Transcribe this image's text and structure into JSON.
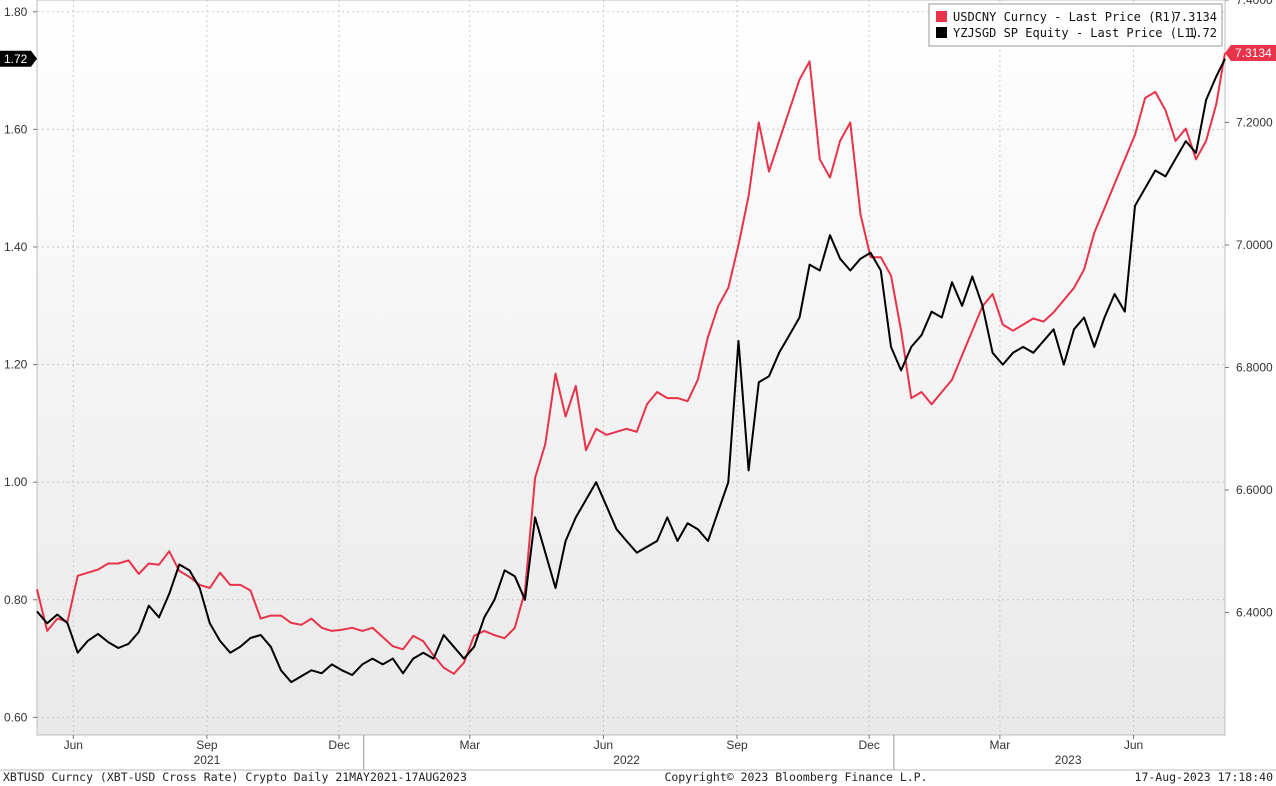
{
  "chart_data": {
    "type": "line",
    "x_range": [
      "2021-05-21",
      "2023-08-17"
    ],
    "left_axis": {
      "ylim": [
        0.57,
        1.82
      ],
      "ticks": [
        0.6,
        0.8,
        1.0,
        1.2,
        1.4,
        1.6,
        1.8
      ],
      "tick_labels": [
        "0.60",
        "0.80",
        "1.00",
        "1.20",
        "1.40",
        "1.60",
        "1.80"
      ]
    },
    "right_axis": {
      "ylim": [
        6.2,
        7.4
      ],
      "ticks": [
        6.4,
        6.6,
        6.8,
        7.0,
        7.2,
        7.4
      ],
      "tick_labels": [
        "6.4000",
        "6.6000",
        "6.8000",
        "7.0000",
        "7.2000",
        "7.4000"
      ]
    },
    "x_months": [
      {
        "label": "Jun",
        "date": "2021-06-15"
      },
      {
        "label": "Sep",
        "date": "2021-09-15"
      },
      {
        "label": "Dec",
        "date": "2021-12-15"
      },
      {
        "label": "Mar",
        "date": "2022-03-15"
      },
      {
        "label": "Jun",
        "date": "2022-06-15"
      },
      {
        "label": "Sep",
        "date": "2022-09-15"
      },
      {
        "label": "Dec",
        "date": "2022-12-15"
      },
      {
        "label": "Mar",
        "date": "2023-03-15"
      },
      {
        "label": "Jun",
        "date": "2023-06-15"
      }
    ],
    "x_years": [
      {
        "label": "2021",
        "date": "2021-09-15"
      },
      {
        "label": "2022",
        "date": "2022-07-01"
      },
      {
        "label": "2023",
        "date": "2023-05-01"
      }
    ],
    "year_dividers": [
      "2022-01-01",
      "2023-01-01"
    ],
    "grid": true,
    "legend_position": "top-right",
    "series": [
      {
        "name": "USDCNY Curncy - Last Price (R1)",
        "last_label": "7.3134",
        "axis": "right",
        "color": "#e8334a",
        "points": [
          [
            "2021-05-21",
            6.438
          ],
          [
            "2021-05-28",
            6.37
          ],
          [
            "2021-06-04",
            6.39
          ],
          [
            "2021-06-11",
            6.385
          ],
          [
            "2021-06-18",
            6.46
          ],
          [
            "2021-06-25",
            6.465
          ],
          [
            "2021-07-02",
            6.47
          ],
          [
            "2021-07-09",
            6.48
          ],
          [
            "2021-07-16",
            6.48
          ],
          [
            "2021-07-23",
            6.485
          ],
          [
            "2021-07-30",
            6.463
          ],
          [
            "2021-08-06",
            6.48
          ],
          [
            "2021-08-13",
            6.478
          ],
          [
            "2021-08-20",
            6.5
          ],
          [
            "2021-08-27",
            6.468
          ],
          [
            "2021-09-03",
            6.458
          ],
          [
            "2021-09-10",
            6.445
          ],
          [
            "2021-09-17",
            6.44
          ],
          [
            "2021-09-24",
            6.465
          ],
          [
            "2021-10-01",
            6.445
          ],
          [
            "2021-10-08",
            6.445
          ],
          [
            "2021-10-15",
            6.436
          ],
          [
            "2021-10-22",
            6.39
          ],
          [
            "2021-10-29",
            6.395
          ],
          [
            "2021-11-05",
            6.395
          ],
          [
            "2021-11-12",
            6.383
          ],
          [
            "2021-11-19",
            6.38
          ],
          [
            "2021-11-26",
            6.39
          ],
          [
            "2021-12-03",
            6.375
          ],
          [
            "2021-12-10",
            6.37
          ],
          [
            "2021-12-17",
            6.372
          ],
          [
            "2021-12-24",
            6.375
          ],
          [
            "2021-12-31",
            6.37
          ],
          [
            "2022-01-07",
            6.375
          ],
          [
            "2022-01-14",
            6.36
          ],
          [
            "2022-01-21",
            6.345
          ],
          [
            "2022-01-28",
            6.34
          ],
          [
            "2022-02-04",
            6.362
          ],
          [
            "2022-02-11",
            6.353
          ],
          [
            "2022-02-18",
            6.33
          ],
          [
            "2022-02-25",
            6.31
          ],
          [
            "2022-03-04",
            6.3
          ],
          [
            "2022-03-11",
            6.318
          ],
          [
            "2022-03-18",
            6.362
          ],
          [
            "2022-03-25",
            6.37
          ],
          [
            "2022-04-01",
            6.363
          ],
          [
            "2022-04-08",
            6.358
          ],
          [
            "2022-04-15",
            6.375
          ],
          [
            "2022-04-22",
            6.435
          ],
          [
            "2022-04-29",
            6.62
          ],
          [
            "2022-05-06",
            6.675
          ],
          [
            "2022-05-13",
            6.79
          ],
          [
            "2022-05-20",
            6.72
          ],
          [
            "2022-05-27",
            6.77
          ],
          [
            "2022-06-03",
            6.665
          ],
          [
            "2022-06-10",
            6.7
          ],
          [
            "2022-06-17",
            6.69
          ],
          [
            "2022-06-24",
            6.695
          ],
          [
            "2022-07-01",
            6.7
          ],
          [
            "2022-07-08",
            6.695
          ],
          [
            "2022-07-15",
            6.74
          ],
          [
            "2022-07-22",
            6.76
          ],
          [
            "2022-07-29",
            6.75
          ],
          [
            "2022-08-05",
            6.75
          ],
          [
            "2022-08-12",
            6.745
          ],
          [
            "2022-08-19",
            6.78
          ],
          [
            "2022-08-26",
            6.85
          ],
          [
            "2022-09-02",
            6.9
          ],
          [
            "2022-09-09",
            6.93
          ],
          [
            "2022-09-16",
            7.0
          ],
          [
            "2022-09-23",
            7.08
          ],
          [
            "2022-09-30",
            7.2
          ],
          [
            "2022-10-07",
            7.12
          ],
          [
            "2022-10-14",
            7.17
          ],
          [
            "2022-10-21",
            7.22
          ],
          [
            "2022-10-28",
            7.27
          ],
          [
            "2022-11-04",
            7.3
          ],
          [
            "2022-11-11",
            7.14
          ],
          [
            "2022-11-18",
            7.11
          ],
          [
            "2022-11-25",
            7.17
          ],
          [
            "2022-12-02",
            7.2
          ],
          [
            "2022-12-09",
            7.05
          ],
          [
            "2022-12-16",
            6.98
          ],
          [
            "2022-12-23",
            6.98
          ],
          [
            "2022-12-30",
            6.95
          ],
          [
            "2023-01-06",
            6.86
          ],
          [
            "2023-01-13",
            6.75
          ],
          [
            "2023-01-20",
            6.76
          ],
          [
            "2023-01-27",
            6.74
          ],
          [
            "2023-02-03",
            6.76
          ],
          [
            "2023-02-10",
            6.78
          ],
          [
            "2023-02-17",
            6.82
          ],
          [
            "2023-02-24",
            6.86
          ],
          [
            "2023-03-03",
            6.9
          ],
          [
            "2023-03-10",
            6.92
          ],
          [
            "2023-03-17",
            6.87
          ],
          [
            "2023-03-24",
            6.86
          ],
          [
            "2023-03-31",
            6.87
          ],
          [
            "2023-04-07",
            6.88
          ],
          [
            "2023-04-14",
            6.875
          ],
          [
            "2023-04-21",
            6.89
          ],
          [
            "2023-04-28",
            6.91
          ],
          [
            "2023-05-05",
            6.93
          ],
          [
            "2023-05-12",
            6.96
          ],
          [
            "2023-05-19",
            7.02
          ],
          [
            "2023-05-26",
            7.06
          ],
          [
            "2023-06-02",
            7.1
          ],
          [
            "2023-06-09",
            7.14
          ],
          [
            "2023-06-16",
            7.18
          ],
          [
            "2023-06-23",
            7.24
          ],
          [
            "2023-06-30",
            7.25
          ],
          [
            "2023-07-07",
            7.22
          ],
          [
            "2023-07-14",
            7.17
          ],
          [
            "2023-07-21",
            7.19
          ],
          [
            "2023-07-28",
            7.14
          ],
          [
            "2023-08-04",
            7.17
          ],
          [
            "2023-08-11",
            7.23
          ],
          [
            "2023-08-17",
            7.3134
          ]
        ]
      },
      {
        "name": "YZJSGD SP Equity - Last Price (L1)",
        "last_label": "1.72",
        "axis": "left",
        "color": "#000000",
        "points": [
          [
            "2021-05-21",
            0.78
          ],
          [
            "2021-05-28",
            0.76
          ],
          [
            "2021-06-04",
            0.775
          ],
          [
            "2021-06-11",
            0.76
          ],
          [
            "2021-06-18",
            0.71
          ],
          [
            "2021-06-25",
            0.73
          ],
          [
            "2021-07-02",
            0.742
          ],
          [
            "2021-07-09",
            0.728
          ],
          [
            "2021-07-16",
            0.718
          ],
          [
            "2021-07-23",
            0.725
          ],
          [
            "2021-07-30",
            0.745
          ],
          [
            "2021-08-06",
            0.79
          ],
          [
            "2021-08-13",
            0.77
          ],
          [
            "2021-08-20",
            0.81
          ],
          [
            "2021-08-27",
            0.86
          ],
          [
            "2021-09-03",
            0.85
          ],
          [
            "2021-09-10",
            0.82
          ],
          [
            "2021-09-17",
            0.76
          ],
          [
            "2021-09-24",
            0.73
          ],
          [
            "2021-10-01",
            0.71
          ],
          [
            "2021-10-08",
            0.72
          ],
          [
            "2021-10-15",
            0.735
          ],
          [
            "2021-10-22",
            0.74
          ],
          [
            "2021-10-29",
            0.72
          ],
          [
            "2021-11-05",
            0.68
          ],
          [
            "2021-11-12",
            0.66
          ],
          [
            "2021-11-19",
            0.67
          ],
          [
            "2021-11-26",
            0.68
          ],
          [
            "2021-12-03",
            0.675
          ],
          [
            "2021-12-10",
            0.69
          ],
          [
            "2021-12-17",
            0.68
          ],
          [
            "2021-12-24",
            0.672
          ],
          [
            "2021-12-31",
            0.69
          ],
          [
            "2022-01-07",
            0.7
          ],
          [
            "2022-01-14",
            0.69
          ],
          [
            "2022-01-21",
            0.7
          ],
          [
            "2022-01-28",
            0.675
          ],
          [
            "2022-02-04",
            0.7
          ],
          [
            "2022-02-11",
            0.71
          ],
          [
            "2022-02-18",
            0.7
          ],
          [
            "2022-02-25",
            0.74
          ],
          [
            "2022-03-04",
            0.72
          ],
          [
            "2022-03-11",
            0.7
          ],
          [
            "2022-03-18",
            0.72
          ],
          [
            "2022-03-25",
            0.77
          ],
          [
            "2022-04-01",
            0.8
          ],
          [
            "2022-04-08",
            0.85
          ],
          [
            "2022-04-15",
            0.84
          ],
          [
            "2022-04-22",
            0.8
          ],
          [
            "2022-04-29",
            0.94
          ],
          [
            "2022-05-06",
            0.88
          ],
          [
            "2022-05-13",
            0.82
          ],
          [
            "2022-05-20",
            0.9
          ],
          [
            "2022-05-27",
            0.94
          ],
          [
            "2022-06-03",
            0.97
          ],
          [
            "2022-06-10",
            1.0
          ],
          [
            "2022-06-17",
            0.96
          ],
          [
            "2022-06-24",
            0.92
          ],
          [
            "2022-07-01",
            0.9
          ],
          [
            "2022-07-08",
            0.88
          ],
          [
            "2022-07-15",
            0.89
          ],
          [
            "2022-07-22",
            0.9
          ],
          [
            "2022-07-29",
            0.94
          ],
          [
            "2022-08-05",
            0.9
          ],
          [
            "2022-08-12",
            0.93
          ],
          [
            "2022-08-19",
            0.92
          ],
          [
            "2022-08-26",
            0.9
          ],
          [
            "2022-09-02",
            0.95
          ],
          [
            "2022-09-09",
            1.0
          ],
          [
            "2022-09-16",
            1.24
          ],
          [
            "2022-09-23",
            1.02
          ],
          [
            "2022-09-30",
            1.17
          ],
          [
            "2022-10-07",
            1.18
          ],
          [
            "2022-10-14",
            1.22
          ],
          [
            "2022-10-21",
            1.25
          ],
          [
            "2022-10-28",
            1.28
          ],
          [
            "2022-11-04",
            1.37
          ],
          [
            "2022-11-11",
            1.36
          ],
          [
            "2022-11-18",
            1.42
          ],
          [
            "2022-11-25",
            1.38
          ],
          [
            "2022-12-02",
            1.36
          ],
          [
            "2022-12-09",
            1.38
          ],
          [
            "2022-12-16",
            1.39
          ],
          [
            "2022-12-23",
            1.36
          ],
          [
            "2022-12-30",
            1.23
          ],
          [
            "2023-01-06",
            1.19
          ],
          [
            "2023-01-13",
            1.23
          ],
          [
            "2023-01-20",
            1.25
          ],
          [
            "2023-01-27",
            1.29
          ],
          [
            "2023-02-03",
            1.28
          ],
          [
            "2023-02-10",
            1.34
          ],
          [
            "2023-02-17",
            1.3
          ],
          [
            "2023-02-24",
            1.35
          ],
          [
            "2023-03-03",
            1.3
          ],
          [
            "2023-03-10",
            1.22
          ],
          [
            "2023-03-17",
            1.2
          ],
          [
            "2023-03-24",
            1.22
          ],
          [
            "2023-03-31",
            1.23
          ],
          [
            "2023-04-07",
            1.22
          ],
          [
            "2023-04-14",
            1.24
          ],
          [
            "2023-04-21",
            1.26
          ],
          [
            "2023-04-28",
            1.2
          ],
          [
            "2023-05-05",
            1.26
          ],
          [
            "2023-05-12",
            1.28
          ],
          [
            "2023-05-19",
            1.23
          ],
          [
            "2023-05-26",
            1.28
          ],
          [
            "2023-06-02",
            1.32
          ],
          [
            "2023-06-09",
            1.29
          ],
          [
            "2023-06-16",
            1.47
          ],
          [
            "2023-06-23",
            1.5
          ],
          [
            "2023-06-30",
            1.53
          ],
          [
            "2023-07-07",
            1.52
          ],
          [
            "2023-07-14",
            1.55
          ],
          [
            "2023-07-21",
            1.58
          ],
          [
            "2023-07-28",
            1.56
          ],
          [
            "2023-08-04",
            1.65
          ],
          [
            "2023-08-11",
            1.69
          ],
          [
            "2023-08-17",
            1.72
          ]
        ]
      }
    ]
  },
  "footer": {
    "left": "XBTUSD Curncy (XBT-USD Cross Rate) Crypto  Daily 21MAY2021-17AUG2023",
    "center": "Copyright© 2023 Bloomberg Finance L.P.",
    "right": "17-Aug-2023 17:18:40"
  }
}
